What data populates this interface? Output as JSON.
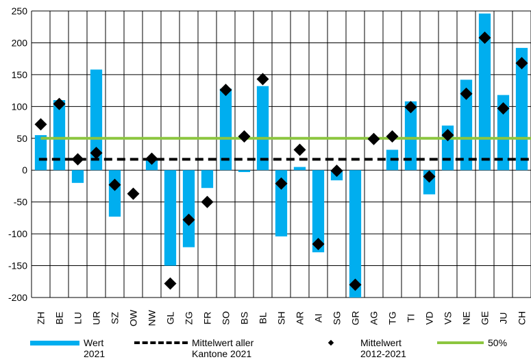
{
  "chart_data": {
    "type": "bar",
    "categories": [
      "ZH",
      "BE",
      "LU",
      "UR",
      "SZ",
      "OW",
      "NW",
      "GL",
      "ZG",
      "FR",
      "SO",
      "BS",
      "BL",
      "SH",
      "AR",
      "AI",
      "SG",
      "GR",
      "AG",
      "TG",
      "TI",
      "VD",
      "VS",
      "NE",
      "GE",
      "JU",
      "CH"
    ],
    "series": [
      {
        "name": "Wert 2021",
        "kind": "bar",
        "color": "#00aeef",
        "values": [
          55,
          110,
          -20,
          158,
          -73,
          0,
          15,
          -150,
          -121,
          -28,
          128,
          -3,
          132,
          -104,
          5,
          -129,
          -16,
          -200,
          0,
          32,
          108,
          -38,
          70,
          142,
          246,
          118,
          192
        ]
      },
      {
        "name": "Mittelwert 2012-2021",
        "kind": "marker",
        "color": "#000000",
        "values": [
          72,
          104,
          17,
          27,
          -23,
          -37,
          18,
          -178,
          -78,
          -50,
          126,
          53,
          143,
          -21,
          32,
          -116,
          -1,
          -180,
          49,
          53,
          99,
          -10,
          55,
          120,
          208,
          97,
          168
        ]
      }
    ],
    "reference_lines": [
      {
        "name": "Mittelwert aller Kantone 2021",
        "value": 17,
        "style": "dashed",
        "color": "#000000"
      },
      {
        "name": "50%",
        "value": 50,
        "style": "solid",
        "color": "#8cc63f"
      }
    ],
    "ylim": [
      -200,
      250
    ],
    "yticks": [
      250,
      200,
      150,
      100,
      50,
      0,
      -50,
      -100,
      -150,
      -200
    ],
    "grid": true,
    "title": "",
    "xlabel": "",
    "ylabel": ""
  },
  "legend": [
    {
      "line1": "Wert",
      "line2": "2021"
    },
    {
      "line1": "Mittelwert aller",
      "line2": "Kantone 2021"
    },
    {
      "line1": "Mittelwert",
      "line2": "2012-2021"
    },
    {
      "line1": "50%",
      "line2": ""
    }
  ]
}
